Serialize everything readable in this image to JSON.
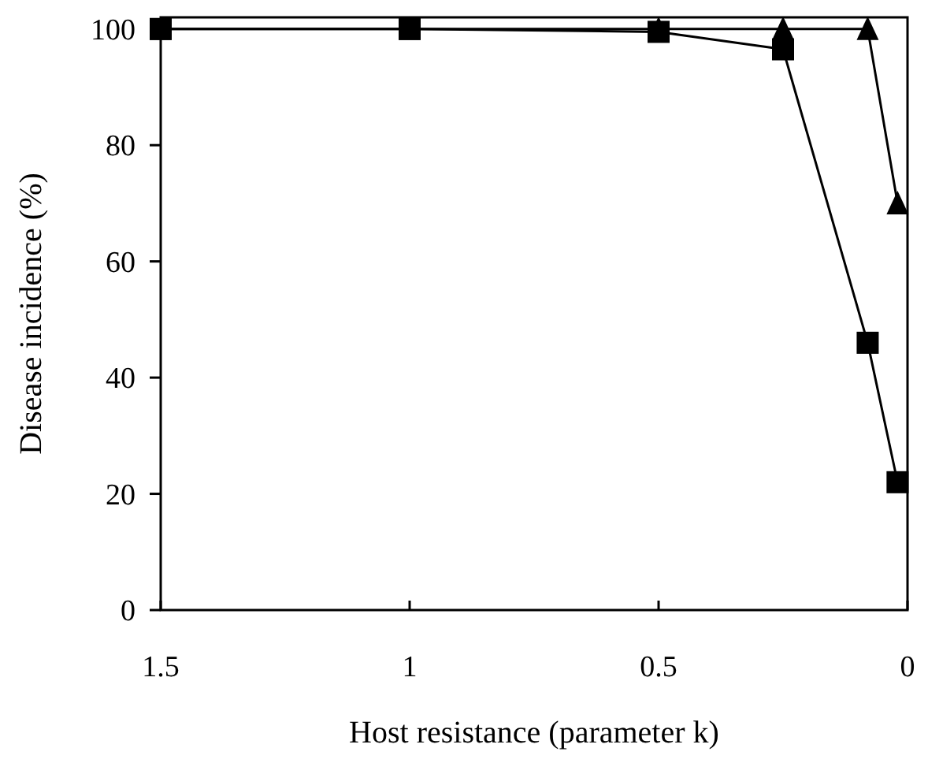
{
  "chart_data": {
    "type": "line",
    "xlabel": "Host resistance (parameter k)",
    "ylabel": "Disease incidence (%)",
    "xlim": [
      1.5,
      0
    ],
    "ylim": [
      0,
      102
    ],
    "xticks": [
      1.5,
      1,
      0.5,
      0
    ],
    "yticks": [
      0,
      20,
      40,
      60,
      80,
      100
    ],
    "grid": false,
    "series": [
      {
        "color": "#000000",
        "marker": "square",
        "x": [
          1.5,
          1,
          0.5,
          0.25,
          0.08,
          0.02
        ],
        "values": [
          100,
          100,
          99.5,
          96.5,
          46,
          22
        ]
      },
      {
        "color": "#000000",
        "marker": "triangle",
        "x": [
          1.5,
          1,
          0.5,
          0.25,
          0.08,
          0.02
        ],
        "values": [
          100,
          100,
          100,
          100,
          100,
          70
        ]
      }
    ]
  }
}
